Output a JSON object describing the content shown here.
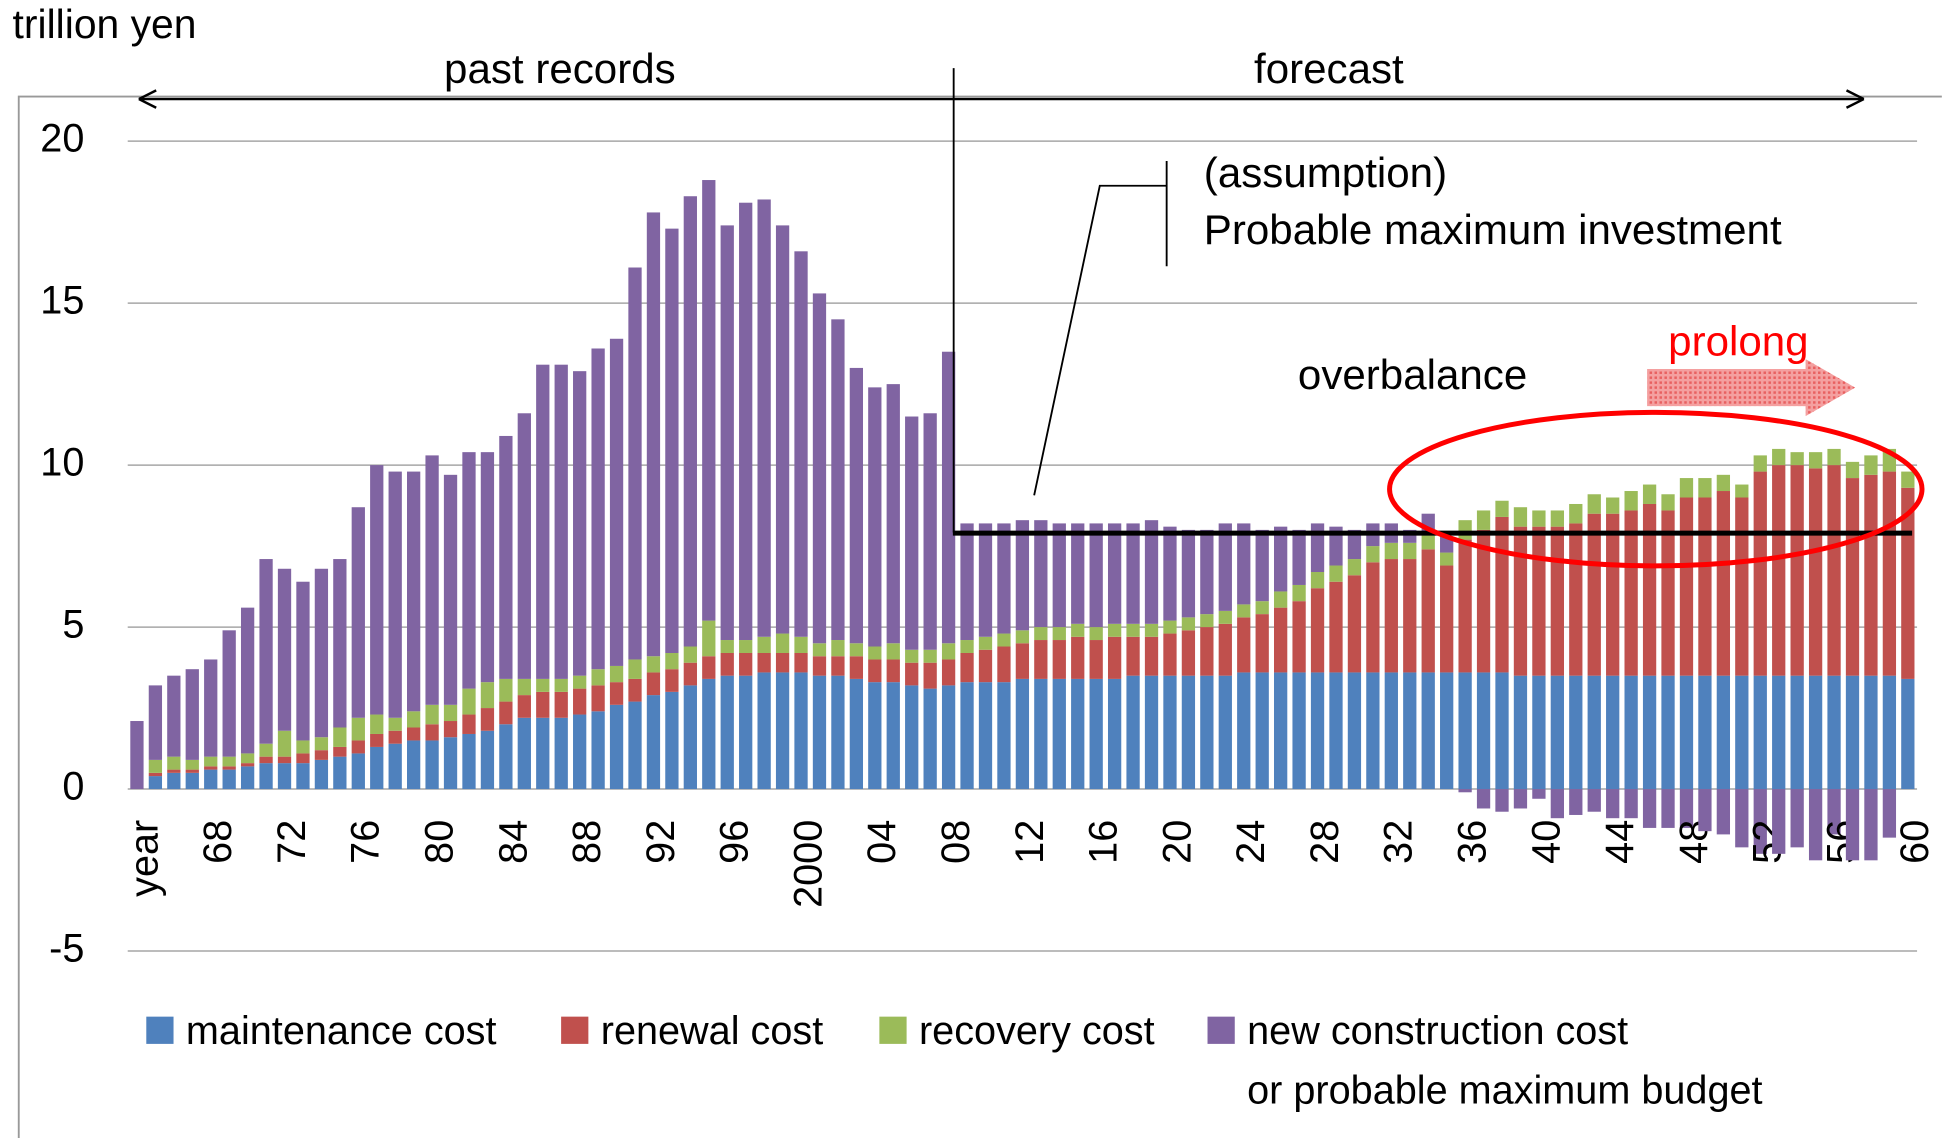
{
  "chart_data": {
    "type": "stacked_bar",
    "y_unit_label": "trillion yen",
    "annotations": {
      "past": "past records",
      "forecast": "forecast",
      "assumption": "(assumption)",
      "assumption_text": "Probable maximum investment",
      "overbalance": "overbalance",
      "prolong": "prolong"
    },
    "categories": [
      "year",
      null,
      null,
      null,
      "68",
      null,
      null,
      null,
      "72",
      null,
      null,
      null,
      "76",
      null,
      null,
      null,
      "80",
      null,
      null,
      null,
      "84",
      null,
      null,
      null,
      "88",
      null,
      null,
      null,
      "92",
      null,
      null,
      null,
      "96",
      null,
      null,
      null,
      "2000",
      null,
      null,
      null,
      "04",
      null,
      null,
      null,
      "08",
      null,
      null,
      null,
      "12",
      null,
      null,
      null,
      "16",
      null,
      null,
      null,
      "20",
      null,
      null,
      null,
      "24",
      null,
      null,
      null,
      "28",
      null,
      null,
      null,
      "32",
      null,
      null,
      null,
      "36",
      null,
      null,
      null,
      "40",
      null,
      null,
      null,
      "44",
      null,
      null,
      null,
      "48",
      null,
      null,
      null,
      "52",
      null,
      null,
      null,
      "56",
      null,
      null,
      null,
      "60"
    ],
    "series": [
      {
        "name": "maintenance cost",
        "color": "#4f81bd",
        "values": [
          0,
          0.4,
          0.5,
          0.5,
          0.6,
          0.6,
          0.7,
          0.8,
          0.8,
          0.8,
          0.9,
          1.0,
          1.1,
          1.3,
          1.4,
          1.5,
          1.5,
          1.6,
          1.7,
          1.8,
          2.0,
          2.2,
          2.2,
          2.2,
          2.3,
          2.4,
          2.6,
          2.7,
          2.9,
          3.0,
          3.2,
          3.4,
          3.5,
          3.5,
          3.6,
          3.6,
          3.6,
          3.5,
          3.5,
          3.4,
          3.3,
          3.3,
          3.2,
          3.1,
          3.2,
          3.3,
          3.3,
          3.3,
          3.4,
          3.4,
          3.4,
          3.4,
          3.4,
          3.4,
          3.5,
          3.5,
          3.5,
          3.5,
          3.5,
          3.5,
          3.6,
          3.6,
          3.6,
          3.6,
          3.6,
          3.6,
          3.6,
          3.6,
          3.6,
          3.6,
          3.6,
          3.6,
          3.6,
          3.6,
          3.6,
          3.5,
          3.5,
          3.5,
          3.5,
          3.5,
          3.5,
          3.5,
          3.5,
          3.5,
          3.5,
          3.5,
          3.5,
          3.5,
          3.5,
          3.5,
          3.5,
          3.5,
          3.5,
          3.5,
          3.5,
          3.5,
          3.4
        ]
      },
      {
        "name": "renewal cost",
        "color": "#c0504d",
        "values": [
          0,
          0.1,
          0.1,
          0.1,
          0.1,
          0.1,
          0.1,
          0.2,
          0.2,
          0.3,
          0.3,
          0.3,
          0.4,
          0.4,
          0.4,
          0.4,
          0.5,
          0.5,
          0.6,
          0.7,
          0.7,
          0.7,
          0.8,
          0.8,
          0.8,
          0.8,
          0.7,
          0.7,
          0.7,
          0.7,
          0.7,
          0.7,
          0.7,
          0.7,
          0.6,
          0.6,
          0.6,
          0.6,
          0.6,
          0.7,
          0.7,
          0.7,
          0.7,
          0.8,
          0.8,
          0.9,
          1.0,
          1.1,
          1.1,
          1.2,
          1.2,
          1.3,
          1.2,
          1.3,
          1.2,
          1.2,
          1.3,
          1.4,
          1.5,
          1.6,
          1.7,
          1.8,
          2.0,
          2.2,
          2.6,
          2.8,
          3.0,
          3.4,
          3.5,
          3.5,
          3.8,
          3.3,
          4.1,
          4.4,
          4.8,
          4.6,
          4.6,
          4.6,
          4.7,
          5.0,
          5.0,
          5.1,
          5.3,
          5.1,
          5.5,
          5.5,
          5.7,
          5.5,
          6.3,
          6.5,
          6.5,
          6.4,
          6.5,
          6.1,
          6.2,
          6.3,
          5.9
        ]
      },
      {
        "name": "recovery cost",
        "color": "#9bbb59",
        "values": [
          0,
          0.4,
          0.4,
          0.3,
          0.3,
          0.3,
          0.3,
          0.4,
          0.8,
          0.4,
          0.4,
          0.6,
          0.7,
          0.6,
          0.4,
          0.5,
          0.6,
          0.5,
          0.8,
          0.8,
          0.7,
          0.5,
          0.4,
          0.4,
          0.4,
          0.5,
          0.5,
          0.6,
          0.5,
          0.5,
          0.5,
          1.1,
          0.4,
          0.4,
          0.5,
          0.6,
          0.5,
          0.4,
          0.5,
          0.4,
          0.4,
          0.5,
          0.4,
          0.4,
          0.5,
          0.4,
          0.4,
          0.4,
          0.4,
          0.4,
          0.4,
          0.4,
          0.4,
          0.4,
          0.4,
          0.4,
          0.4,
          0.4,
          0.4,
          0.4,
          0.4,
          0.4,
          0.5,
          0.5,
          0.5,
          0.5,
          0.5,
          0.5,
          0.5,
          0.5,
          0.5,
          0.4,
          0.6,
          0.6,
          0.5,
          0.6,
          0.5,
          0.5,
          0.6,
          0.6,
          0.5,
          0.6,
          0.6,
          0.5,
          0.6,
          0.6,
          0.5,
          0.4,
          0.5,
          0.5,
          0.4,
          0.5,
          0.5,
          0.5,
          0.6,
          0.7,
          0.5
        ]
      },
      {
        "name": "new construction cost\nor probable maximum budget",
        "color": "#8064a2",
        "values": [
          2.1,
          2.3,
          2.5,
          2.8,
          3.0,
          3.9,
          4.5,
          5.7,
          5.0,
          4.9,
          5.2,
          5.2,
          6.5,
          7.7,
          7.6,
          7.4,
          7.7,
          7.1,
          7.3,
          7.1,
          7.5,
          8.2,
          9.7,
          9.7,
          9.4,
          9.9,
          10.1,
          12.1,
          13.7,
          13.1,
          13.9,
          13.6,
          12.8,
          13.5,
          13.5,
          12.6,
          11.9,
          10.8,
          9.9,
          8.5,
          8.0,
          8.0,
          7.2,
          7.3,
          9.0,
          3.6,
          3.5,
          3.4,
          3.4,
          3.3,
          3.2,
          3.1,
          3.2,
          3.1,
          3.1,
          3.2,
          2.9,
          2.7,
          2.6,
          2.7,
          2.5,
          2.2,
          2.0,
          1.7,
          1.5,
          1.2,
          0.9,
          0.7,
          0.6,
          0.4,
          0.6,
          0.5,
          -0.1,
          -0.6,
          -0.7,
          -0.6,
          -0.3,
          -0.9,
          -0.8,
          -0.7,
          -0.9,
          -0.9,
          -1.2,
          -1.2,
          -1.2,
          -1.3,
          -1.4,
          -1.8,
          -2.0,
          -2.0,
          -1.8,
          -2.2,
          -1.4,
          -2.2,
          -2.2,
          -1.5,
          0
        ]
      }
    ],
    "reference_line": {
      "value": 7.9,
      "color": "#000000"
    },
    "ylim": [
      -5,
      20
    ],
    "yticks": [
      -5,
      0,
      5,
      10,
      15,
      20
    ],
    "grid": true
  }
}
